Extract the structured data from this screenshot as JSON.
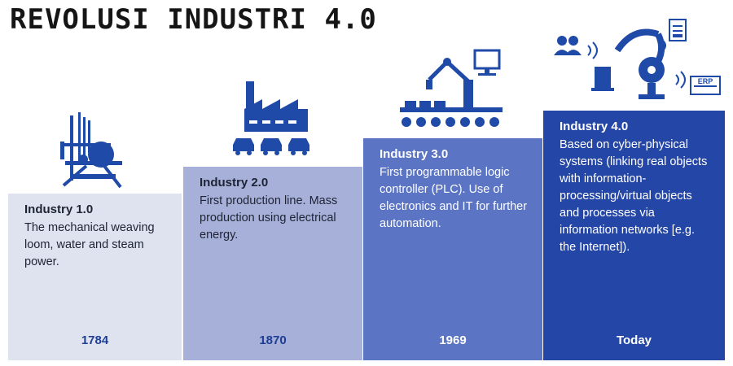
{
  "title": "REVOLUSI INDUSTRI 4.0",
  "colors": {
    "icon": "#1f4aa8",
    "step1_bg": "#dfe2ef",
    "step2_bg": "#a6b0d9",
    "step3_bg": "#5b74c4",
    "step4_bg": "#2446a6"
  },
  "stages": [
    {
      "heading": "Industry 1.0",
      "text": "The mechanical weaving loom, water and steam power.",
      "year": "1784",
      "icon": "weaving-loom-icon"
    },
    {
      "heading": "Industry 2.0",
      "text": "First production line. Mass production using electrical energy.",
      "year": "1870",
      "icon": "factory-production-line-icon"
    },
    {
      "heading": "Industry 3.0",
      "text": "First programmable logic controller (PLC). Use of electronics and IT for further automation.",
      "year": "1969",
      "icon": "robot-arm-computer-icon"
    },
    {
      "heading": "Industry 4.0",
      "text": "Based on cyber-physical systems (linking real objects with information-processing/virtual objects and processes via information networks [e.g. the Internet]).",
      "year": "Today",
      "icon": "cyber-physical-robot-icon",
      "icon_label": "ERP"
    }
  ]
}
